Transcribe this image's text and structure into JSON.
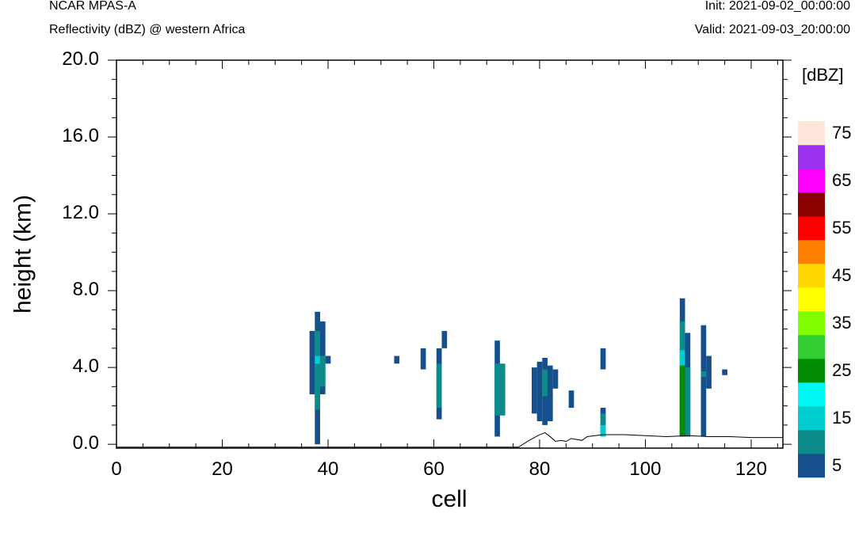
{
  "header": {
    "left_title": "NCAR MPAS-A",
    "left_subtitle": "Reflectivity (dBZ) @ western Africa",
    "right_init": "Init: 2021-09-02_00:00:00",
    "right_valid": "Valid: 2021-09-03_20:00:00"
  },
  "chart_data": {
    "type": "heatmap",
    "title": "Reflectivity (dBZ) @ western Africa",
    "xlabel": "cell",
    "ylabel": "height (km)",
    "xlim": [
      0,
      126
    ],
    "ylim": [
      -0.2,
      20.0
    ],
    "x_ticks": [
      "0",
      "20",
      "40",
      "60",
      "80",
      "100",
      "120"
    ],
    "y_ticks": [
      "0.0",
      "4.0",
      "8.0",
      "12.0",
      "16.0",
      "20.0"
    ],
    "colorbar": {
      "label": "[dBZ]",
      "levels": [
        5,
        10,
        15,
        20,
        25,
        30,
        35,
        40,
        45,
        50,
        55,
        60,
        65,
        70,
        75
      ],
      "tick_labels": [
        "5",
        "15",
        "25",
        "35",
        "45",
        "55",
        "65",
        "75"
      ],
      "colors": [
        "#154f8c",
        "#0d8a8a",
        "#00cdcd",
        "#00f5f5",
        "#008b00",
        "#32cd32",
        "#7fff00",
        "#ffff00",
        "#ffd700",
        "#ff7f00",
        "#ff0000",
        "#8b0000",
        "#ff00ff",
        "#9a32f0",
        "#ffe4da"
      ]
    },
    "cells": [
      {
        "x": 37,
        "y0": 2.6,
        "y1": 5.9,
        "level": 0
      },
      {
        "x": 38,
        "y0": 0.0,
        "y1": 6.9,
        "level": 0
      },
      {
        "x": 38,
        "y0": 1.8,
        "y1": 5.9,
        "level": 1
      },
      {
        "x": 38,
        "y0": 4.2,
        "y1": 4.6,
        "level": 2
      },
      {
        "x": 39,
        "y0": 2.6,
        "y1": 6.4,
        "level": 0
      },
      {
        "x": 39,
        "y0": 3.0,
        "y1": 4.6,
        "level": 1
      },
      {
        "x": 40,
        "y0": 4.2,
        "y1": 4.6,
        "level": 0
      },
      {
        "x": 53,
        "y0": 4.2,
        "y1": 4.6,
        "level": 0
      },
      {
        "x": 58,
        "y0": 3.9,
        "y1": 5.0,
        "level": 0
      },
      {
        "x": 61,
        "y0": 1.3,
        "y1": 5.0,
        "level": 0
      },
      {
        "x": 61,
        "y0": 1.9,
        "y1": 4.2,
        "level": 1
      },
      {
        "x": 62,
        "y0": 5.0,
        "y1": 5.9,
        "level": 0
      },
      {
        "x": 72,
        "y0": 0.4,
        "y1": 5.4,
        "level": 0
      },
      {
        "x": 72,
        "y0": 1.5,
        "y1": 4.2,
        "level": 1
      },
      {
        "x": 73,
        "y0": 1.5,
        "y1": 4.2,
        "level": 1
      },
      {
        "x": 79,
        "y0": 1.6,
        "y1": 4.0,
        "level": 0
      },
      {
        "x": 80,
        "y0": 1.2,
        "y1": 4.3,
        "level": 0
      },
      {
        "x": 81,
        "y0": 1.0,
        "y1": 4.5,
        "level": 0
      },
      {
        "x": 81,
        "y0": 2.5,
        "y1": 3.9,
        "level": 1
      },
      {
        "x": 82,
        "y0": 1.2,
        "y1": 4.1,
        "level": 0
      },
      {
        "x": 83,
        "y0": 2.9,
        "y1": 3.9,
        "level": 0
      },
      {
        "x": 86,
        "y0": 1.9,
        "y1": 2.8,
        "level": 0
      },
      {
        "x": 92,
        "y0": 0.4,
        "y1": 1.9,
        "level": 0
      },
      {
        "x": 92,
        "y0": 0.4,
        "y1": 1.6,
        "level": 1
      },
      {
        "x": 92,
        "y0": 0.4,
        "y1": 1.0,
        "level": 2
      },
      {
        "x": 92,
        "y0": 3.9,
        "y1": 5.0,
        "level": 0
      },
      {
        "x": 107,
        "y0": 0.4,
        "y1": 7.6,
        "level": 0
      },
      {
        "x": 107,
        "y0": 0.4,
        "y1": 6.4,
        "level": 1
      },
      {
        "x": 107,
        "y0": 0.4,
        "y1": 4.9,
        "level": 2
      },
      {
        "x": 107,
        "y0": 0.4,
        "y1": 4.1,
        "level": 4
      },
      {
        "x": 107,
        "y0": 0.4,
        "y1": 3.8,
        "level": 4
      },
      {
        "x": 108,
        "y0": 0.4,
        "y1": 5.8,
        "level": 0
      },
      {
        "x": 108,
        "y0": 0.4,
        "y1": 4.0,
        "level": 1
      },
      {
        "x": 111,
        "y0": 0.4,
        "y1": 6.2,
        "level": 0
      },
      {
        "x": 111,
        "y0": 3.5,
        "y1": 3.8,
        "level": 1
      },
      {
        "x": 112,
        "y0": 2.9,
        "y1": 4.6,
        "level": 0
      },
      {
        "x": 115,
        "y0": 3.6,
        "y1": 3.9,
        "level": 0
      }
    ],
    "terrain": {
      "x": [
        0,
        76,
        78,
        80,
        81,
        82,
        83,
        84,
        85,
        86,
        88,
        89,
        92,
        96,
        100,
        104,
        108,
        112,
        116,
        120,
        124,
        126
      ],
      "y": [
        -0.15,
        -0.15,
        0.2,
        0.5,
        0.6,
        0.4,
        0.15,
        0.2,
        0.15,
        0.3,
        0.2,
        0.4,
        0.5,
        0.5,
        0.45,
        0.4,
        0.45,
        0.4,
        0.4,
        0.35,
        0.35,
        0.35
      ]
    }
  }
}
